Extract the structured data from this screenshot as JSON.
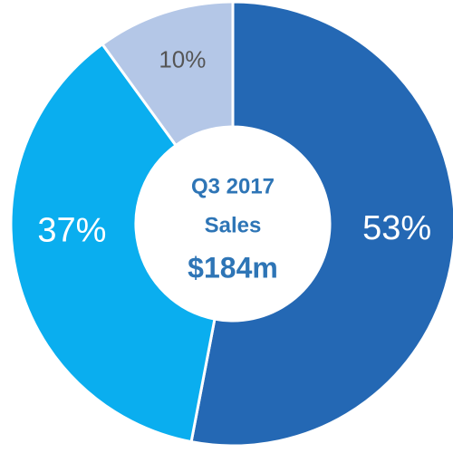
{
  "chart_data": {
    "type": "donut",
    "title": "Q3 2017",
    "subtitle": "Sales",
    "total_label": "$184m",
    "values": [
      53,
      37,
      10
    ],
    "value_labels": [
      "53%",
      "37%",
      "10%"
    ],
    "colors": [
      "#2468b4",
      "#0aaeef",
      "#b4c7e7"
    ],
    "label_colors": [
      "#ffffff",
      "#ffffff",
      "#555555"
    ]
  }
}
